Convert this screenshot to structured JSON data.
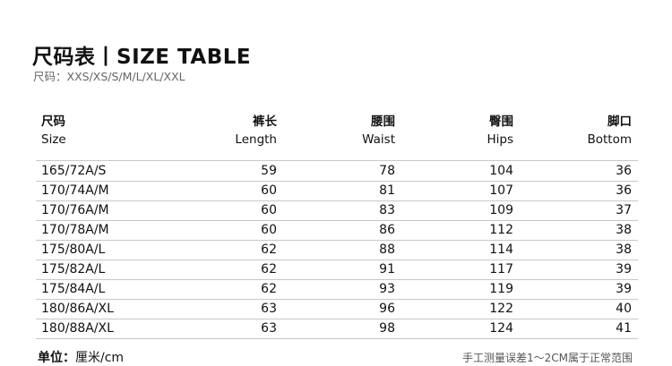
{
  "title": "尺码表丨SIZE TABLE",
  "subtitle": "尺码：XXS/XS/S/M/L/XL/XXL",
  "columns": [
    {
      "zh": "尺码",
      "en": "Size"
    },
    {
      "zh": "裤长",
      "en": "Length"
    },
    {
      "zh": "腰围",
      "en": "Waist"
    },
    {
      "zh": "臀围",
      "en": "Hips"
    },
    {
      "zh": "脚口",
      "en": "Bottom"
    }
  ],
  "rows": [
    [
      "165/72A/S",
      "59",
      "78",
      "104",
      "36"
    ],
    [
      "170/74A/M",
      "60",
      "81",
      "107",
      "36"
    ],
    [
      "170/76A/M",
      "60",
      "83",
      "109",
      "37"
    ],
    [
      "170/78A/M",
      "60",
      "86",
      "112",
      "38"
    ],
    [
      "175/80A/L",
      "62",
      "88",
      "114",
      "38"
    ],
    [
      "175/82A/L",
      "62",
      "91",
      "117",
      "39"
    ],
    [
      "175/84A/L",
      "62",
      "93",
      "119",
      "39"
    ],
    [
      "180/86A/XL",
      "63",
      "96",
      "122",
      "40"
    ],
    [
      "180/88A/XL",
      "63",
      "98",
      "124",
      "41"
    ]
  ],
  "footer": {
    "unit_label": "单位：",
    "unit": "厘米/cm",
    "note": "手工测量误差1～2CM属于正常范围"
  }
}
